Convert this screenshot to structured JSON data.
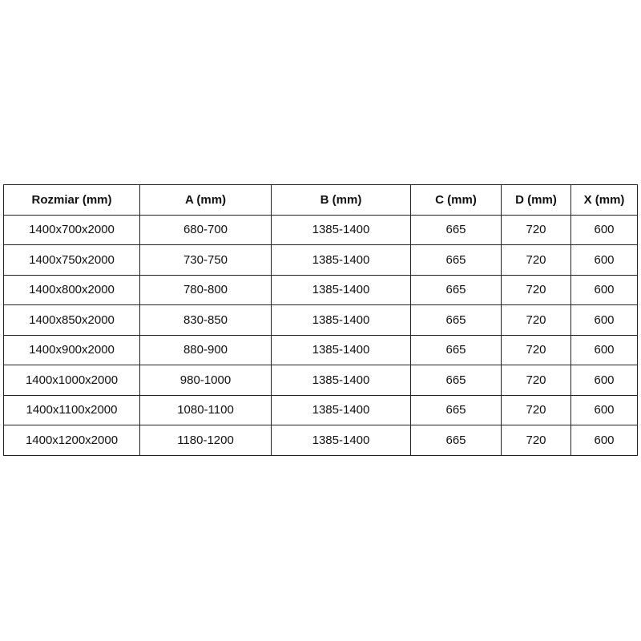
{
  "table": {
    "headers": [
      "Rozmiar (mm)",
      "A (mm)",
      "B (mm)",
      "C (mm)",
      "D (mm)",
      "X (mm)"
    ],
    "rows": [
      [
        "1400x700x2000",
        "680-700",
        "1385-1400",
        "665",
        "720",
        "600"
      ],
      [
        "1400x750x2000",
        "730-750",
        "1385-1400",
        "665",
        "720",
        "600"
      ],
      [
        "1400x800x2000",
        "780-800",
        "1385-1400",
        "665",
        "720",
        "600"
      ],
      [
        "1400x850x2000",
        "830-850",
        "1385-1400",
        "665",
        "720",
        "600"
      ],
      [
        "1400x900x2000",
        "880-900",
        "1385-1400",
        "665",
        "720",
        "600"
      ],
      [
        "1400x1000x2000",
        "980-1000",
        "1385-1400",
        "665",
        "720",
        "600"
      ],
      [
        "1400x1100x2000",
        "1080-1100",
        "1385-1400",
        "665",
        "720",
        "600"
      ],
      [
        "1400x1200x2000",
        "1180-1200",
        "1385-1400",
        "665",
        "720",
        "600"
      ]
    ]
  }
}
